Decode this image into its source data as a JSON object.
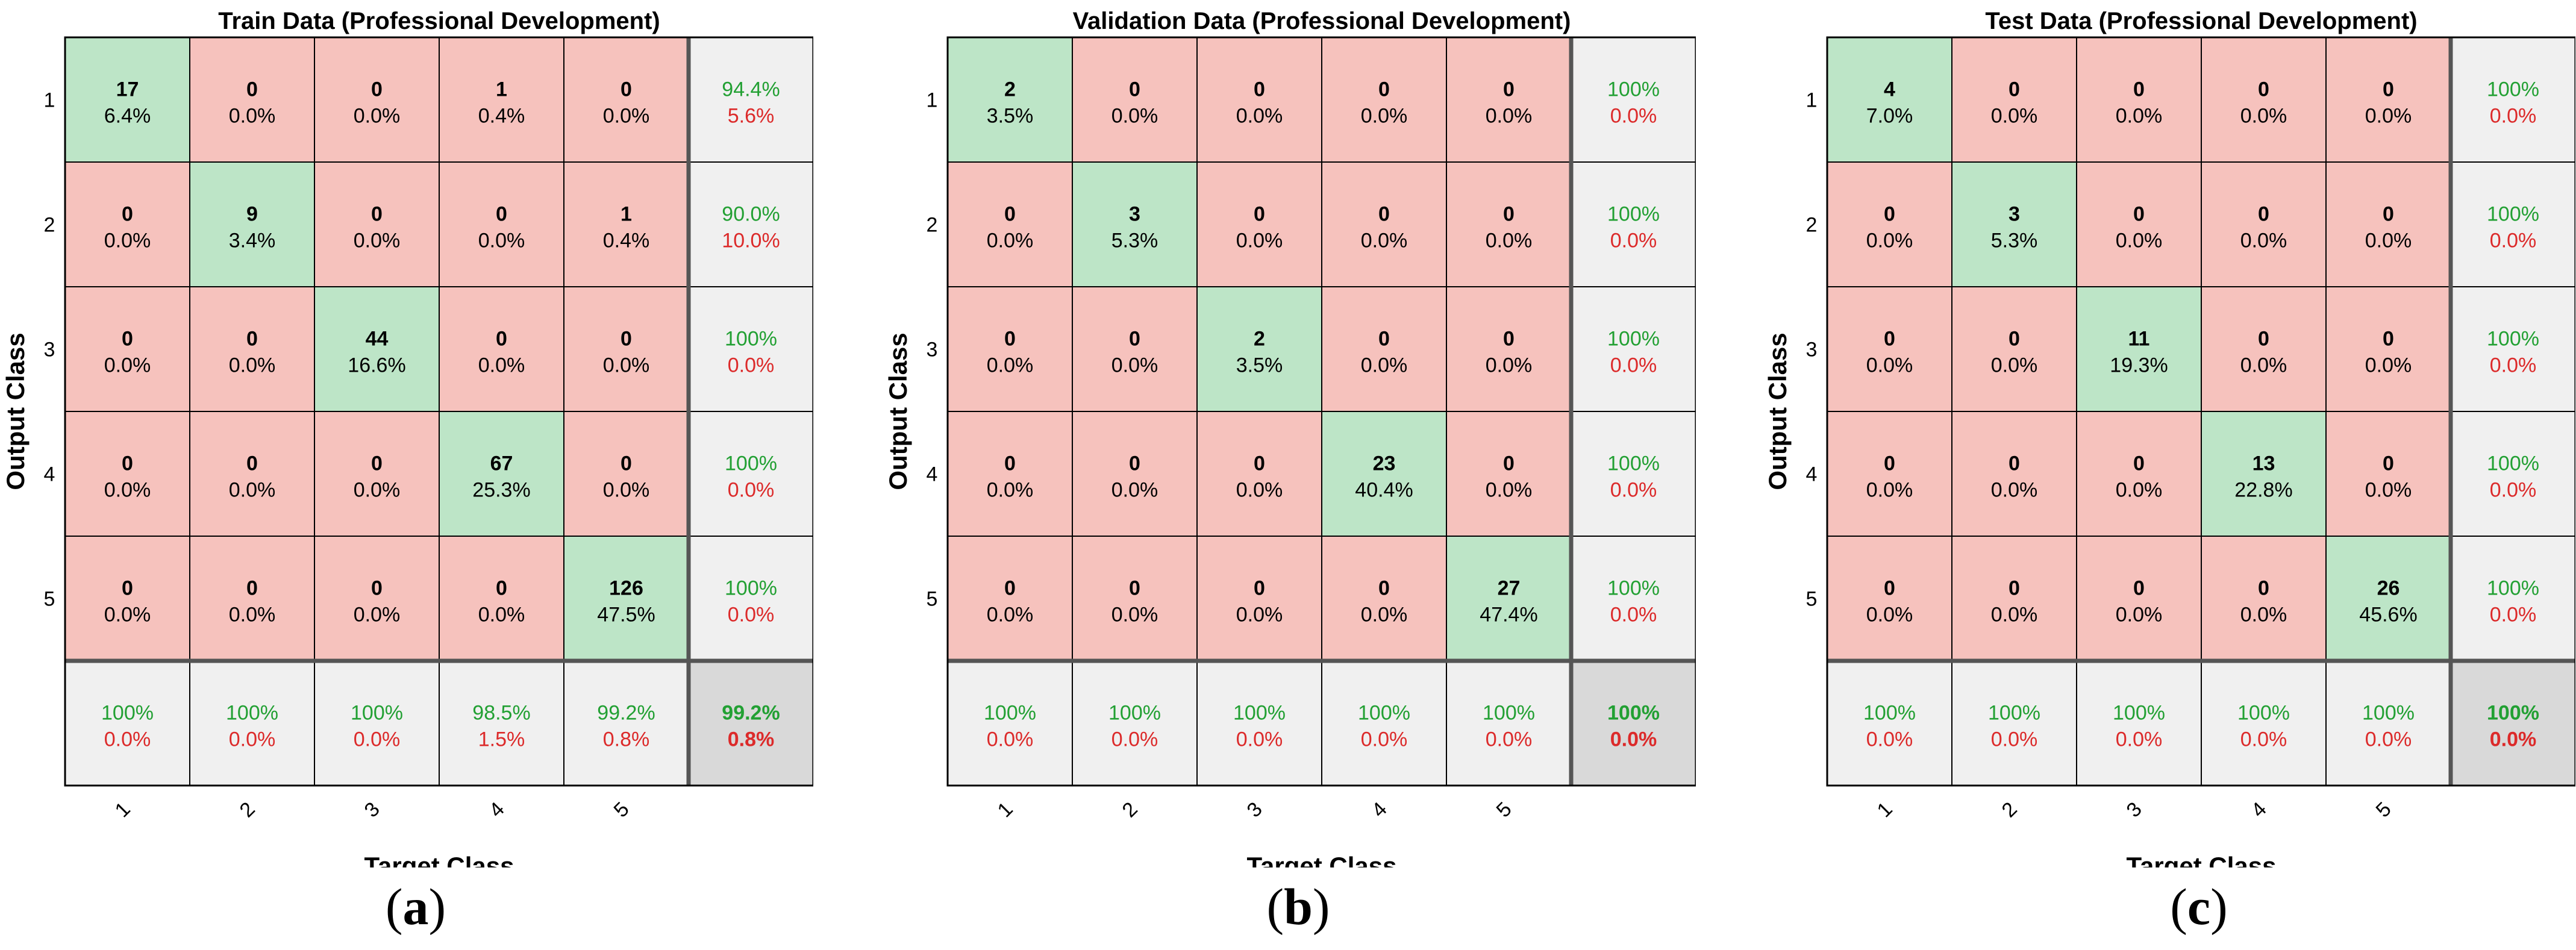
{
  "figure": {
    "captions": [
      "a",
      "b",
      "c"
    ]
  },
  "colors": {
    "diag": "#bde5c7",
    "offdiag": "#f6c2bd",
    "summary": "#f0f0f0",
    "total": "#d9d9d9",
    "green_text": "#22a033",
    "red_text": "#dc2a2a",
    "grid": "#000000",
    "thick_grid": "#555555"
  },
  "chart_data": [
    {
      "type": "confusion_matrix",
      "title": "Train Data (Professional Development)",
      "xlabel": "Target Class",
      "ylabel": "Output Class",
      "class_labels": [
        "1",
        "2",
        "3",
        "4",
        "5"
      ],
      "cells": [
        [
          {
            "count": "17",
            "pct": "6.4%"
          },
          {
            "count": "0",
            "pct": "0.0%"
          },
          {
            "count": "0",
            "pct": "0.0%"
          },
          {
            "count": "1",
            "pct": "0.4%"
          },
          {
            "count": "0",
            "pct": "0.0%"
          }
        ],
        [
          {
            "count": "0",
            "pct": "0.0%"
          },
          {
            "count": "9",
            "pct": "3.4%"
          },
          {
            "count": "0",
            "pct": "0.0%"
          },
          {
            "count": "0",
            "pct": "0.0%"
          },
          {
            "count": "1",
            "pct": "0.4%"
          }
        ],
        [
          {
            "count": "0",
            "pct": "0.0%"
          },
          {
            "count": "0",
            "pct": "0.0%"
          },
          {
            "count": "44",
            "pct": "16.6%"
          },
          {
            "count": "0",
            "pct": "0.0%"
          },
          {
            "count": "0",
            "pct": "0.0%"
          }
        ],
        [
          {
            "count": "0",
            "pct": "0.0%"
          },
          {
            "count": "0",
            "pct": "0.0%"
          },
          {
            "count": "0",
            "pct": "0.0%"
          },
          {
            "count": "67",
            "pct": "25.3%"
          },
          {
            "count": "0",
            "pct": "0.0%"
          }
        ],
        [
          {
            "count": "0",
            "pct": "0.0%"
          },
          {
            "count": "0",
            "pct": "0.0%"
          },
          {
            "count": "0",
            "pct": "0.0%"
          },
          {
            "count": "0",
            "pct": "0.0%"
          },
          {
            "count": "126",
            "pct": "47.5%"
          }
        ]
      ],
      "row_summary": [
        {
          "correct": "94.4%",
          "error": "5.6%"
        },
        {
          "correct": "90.0%",
          "error": "10.0%"
        },
        {
          "correct": "100%",
          "error": "0.0%"
        },
        {
          "correct": "100%",
          "error": "0.0%"
        },
        {
          "correct": "100%",
          "error": "0.0%"
        }
      ],
      "col_summary": [
        {
          "correct": "100%",
          "error": "0.0%"
        },
        {
          "correct": "100%",
          "error": "0.0%"
        },
        {
          "correct": "100%",
          "error": "0.0%"
        },
        {
          "correct": "98.5%",
          "error": "1.5%"
        },
        {
          "correct": "99.2%",
          "error": "0.8%"
        }
      ],
      "overall": {
        "correct": "99.2%",
        "error": "0.8%"
      }
    },
    {
      "type": "confusion_matrix",
      "title": "Validation Data (Professional Development)",
      "xlabel": "Target Class",
      "ylabel": "Output Class",
      "class_labels": [
        "1",
        "2",
        "3",
        "4",
        "5"
      ],
      "cells": [
        [
          {
            "count": "2",
            "pct": "3.5%"
          },
          {
            "count": "0",
            "pct": "0.0%"
          },
          {
            "count": "0",
            "pct": "0.0%"
          },
          {
            "count": "0",
            "pct": "0.0%"
          },
          {
            "count": "0",
            "pct": "0.0%"
          }
        ],
        [
          {
            "count": "0",
            "pct": "0.0%"
          },
          {
            "count": "3",
            "pct": "5.3%"
          },
          {
            "count": "0",
            "pct": "0.0%"
          },
          {
            "count": "0",
            "pct": "0.0%"
          },
          {
            "count": "0",
            "pct": "0.0%"
          }
        ],
        [
          {
            "count": "0",
            "pct": "0.0%"
          },
          {
            "count": "0",
            "pct": "0.0%"
          },
          {
            "count": "2",
            "pct": "3.5%"
          },
          {
            "count": "0",
            "pct": "0.0%"
          },
          {
            "count": "0",
            "pct": "0.0%"
          }
        ],
        [
          {
            "count": "0",
            "pct": "0.0%"
          },
          {
            "count": "0",
            "pct": "0.0%"
          },
          {
            "count": "0",
            "pct": "0.0%"
          },
          {
            "count": "23",
            "pct": "40.4%"
          },
          {
            "count": "0",
            "pct": "0.0%"
          }
        ],
        [
          {
            "count": "0",
            "pct": "0.0%"
          },
          {
            "count": "0",
            "pct": "0.0%"
          },
          {
            "count": "0",
            "pct": "0.0%"
          },
          {
            "count": "0",
            "pct": "0.0%"
          },
          {
            "count": "27",
            "pct": "47.4%"
          }
        ]
      ],
      "row_summary": [
        {
          "correct": "100%",
          "error": "0.0%"
        },
        {
          "correct": "100%",
          "error": "0.0%"
        },
        {
          "correct": "100%",
          "error": "0.0%"
        },
        {
          "correct": "100%",
          "error": "0.0%"
        },
        {
          "correct": "100%",
          "error": "0.0%"
        }
      ],
      "col_summary": [
        {
          "correct": "100%",
          "error": "0.0%"
        },
        {
          "correct": "100%",
          "error": "0.0%"
        },
        {
          "correct": "100%",
          "error": "0.0%"
        },
        {
          "correct": "100%",
          "error": "0.0%"
        },
        {
          "correct": "100%",
          "error": "0.0%"
        }
      ],
      "overall": {
        "correct": "100%",
        "error": "0.0%"
      }
    },
    {
      "type": "confusion_matrix",
      "title": "Test Data (Professional Development)",
      "xlabel": "Target Class",
      "ylabel": "Output Class",
      "class_labels": [
        "1",
        "2",
        "3",
        "4",
        "5"
      ],
      "cells": [
        [
          {
            "count": "4",
            "pct": "7.0%"
          },
          {
            "count": "0",
            "pct": "0.0%"
          },
          {
            "count": "0",
            "pct": "0.0%"
          },
          {
            "count": "0",
            "pct": "0.0%"
          },
          {
            "count": "0",
            "pct": "0.0%"
          }
        ],
        [
          {
            "count": "0",
            "pct": "0.0%"
          },
          {
            "count": "3",
            "pct": "5.3%"
          },
          {
            "count": "0",
            "pct": "0.0%"
          },
          {
            "count": "0",
            "pct": "0.0%"
          },
          {
            "count": "0",
            "pct": "0.0%"
          }
        ],
        [
          {
            "count": "0",
            "pct": "0.0%"
          },
          {
            "count": "0",
            "pct": "0.0%"
          },
          {
            "count": "11",
            "pct": "19.3%"
          },
          {
            "count": "0",
            "pct": "0.0%"
          },
          {
            "count": "0",
            "pct": "0.0%"
          }
        ],
        [
          {
            "count": "0",
            "pct": "0.0%"
          },
          {
            "count": "0",
            "pct": "0.0%"
          },
          {
            "count": "0",
            "pct": "0.0%"
          },
          {
            "count": "13",
            "pct": "22.8%"
          },
          {
            "count": "0",
            "pct": "0.0%"
          }
        ],
        [
          {
            "count": "0",
            "pct": "0.0%"
          },
          {
            "count": "0",
            "pct": "0.0%"
          },
          {
            "count": "0",
            "pct": "0.0%"
          },
          {
            "count": "0",
            "pct": "0.0%"
          },
          {
            "count": "26",
            "pct": "45.6%"
          }
        ]
      ],
      "row_summary": [
        {
          "correct": "100%",
          "error": "0.0%"
        },
        {
          "correct": "100%",
          "error": "0.0%"
        },
        {
          "correct": "100%",
          "error": "0.0%"
        },
        {
          "correct": "100%",
          "error": "0.0%"
        },
        {
          "correct": "100%",
          "error": "0.0%"
        }
      ],
      "col_summary": [
        {
          "correct": "100%",
          "error": "0.0%"
        },
        {
          "correct": "100%",
          "error": "0.0%"
        },
        {
          "correct": "100%",
          "error": "0.0%"
        },
        {
          "correct": "100%",
          "error": "0.0%"
        },
        {
          "correct": "100%",
          "error": "0.0%"
        }
      ],
      "overall": {
        "correct": "100%",
        "error": "0.0%"
      }
    }
  ]
}
